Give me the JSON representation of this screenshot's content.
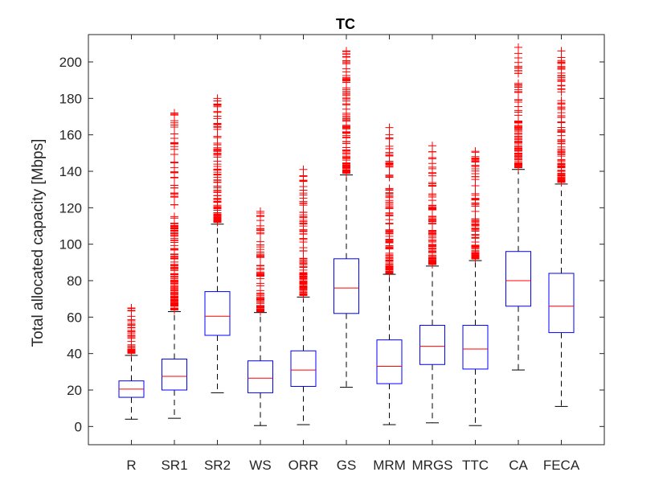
{
  "chart_data": {
    "type": "boxplot",
    "title": "TC",
    "xlabel": "",
    "ylabel": "Total allocated capacity [Mbps]",
    "ylim": [
      -10,
      215
    ],
    "yticks": [
      0,
      20,
      40,
      60,
      80,
      100,
      120,
      140,
      160,
      180,
      200
    ],
    "grid": false,
    "categories": [
      "R",
      "SR1",
      "SR2",
      "WS",
      "ORR",
      "GS",
      "MRM",
      "MRGS",
      "TTC",
      "CA",
      "FECA"
    ],
    "boxes": [
      {
        "name": "R",
        "whisker_low": 4,
        "q1": 16,
        "median": 20.5,
        "q3": 25,
        "whisker_high": 39,
        "outlier_min": 40,
        "outlier_max": 65
      },
      {
        "name": "SR1",
        "whisker_low": 4.5,
        "q1": 20,
        "median": 27.5,
        "q3": 37,
        "whisker_high": 63,
        "outlier_min": 64,
        "outlier_max": 172
      },
      {
        "name": "SR2",
        "whisker_low": 18.5,
        "q1": 50,
        "median": 60.5,
        "q3": 74,
        "whisker_high": 111,
        "outlier_min": 112,
        "outlier_max": 180
      },
      {
        "name": "WS",
        "whisker_low": 0.5,
        "q1": 18.5,
        "median": 26.5,
        "q3": 36,
        "whisker_high": 62.5,
        "outlier_min": 63,
        "outlier_max": 118
      },
      {
        "name": "ORR",
        "whisker_low": 1,
        "q1": 22,
        "median": 31,
        "q3": 41.5,
        "whisker_high": 71,
        "outlier_min": 72,
        "outlier_max": 141
      },
      {
        "name": "GS",
        "whisker_low": 21.5,
        "q1": 62,
        "median": 76,
        "q3": 92,
        "whisker_high": 138,
        "outlier_min": 139,
        "outlier_max": 206
      },
      {
        "name": "MRM",
        "whisker_low": 1,
        "q1": 23.5,
        "median": 33,
        "q3": 47.5,
        "whisker_high": 83.5,
        "outlier_min": 84,
        "outlier_max": 164
      },
      {
        "name": "MRGS",
        "whisker_low": 2,
        "q1": 34,
        "median": 44,
        "q3": 55.5,
        "whisker_high": 88,
        "outlier_min": 89,
        "outlier_max": 154
      },
      {
        "name": "TTC",
        "whisker_low": 0.5,
        "q1": 31.5,
        "median": 42.5,
        "q3": 55.5,
        "whisker_high": 91,
        "outlier_min": 92,
        "outlier_max": 151
      },
      {
        "name": "CA",
        "whisker_low": 31,
        "q1": 66,
        "median": 80,
        "q3": 96,
        "whisker_high": 141,
        "outlier_min": 142,
        "outlier_max": 208
      },
      {
        "name": "FECA",
        "whisker_low": 11,
        "q1": 51.5,
        "median": 66,
        "q3": 84,
        "whisker_high": 133,
        "outlier_min": 134,
        "outlier_max": 206
      }
    ],
    "colors": {
      "box": "#0000ff",
      "median": "#ff0000",
      "outlier": "#ff0000",
      "whisker": "#000000",
      "axis": "#262626"
    }
  }
}
